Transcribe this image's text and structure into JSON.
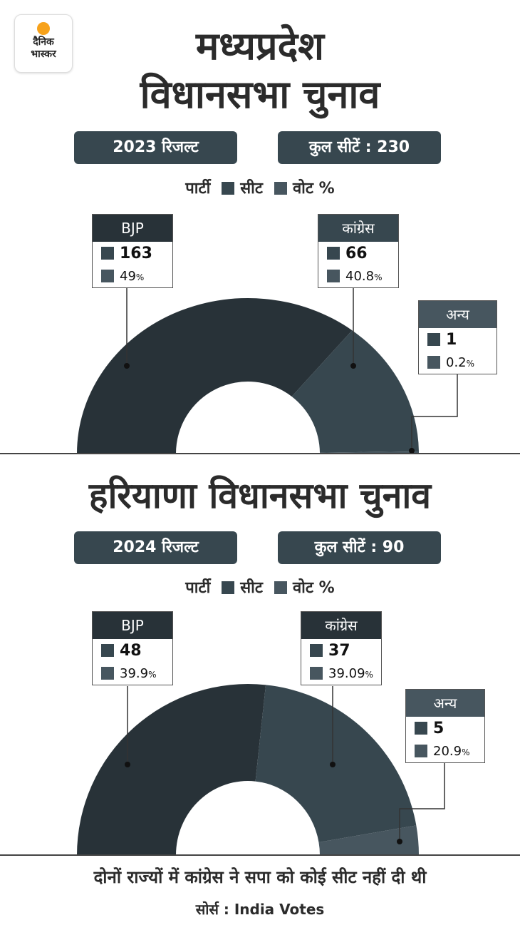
{
  "logo": {
    "line1": "दैनिक",
    "line2": "भास्कर"
  },
  "legend": {
    "party": "पार्टी",
    "seat": "सीट",
    "vote": "वोट %"
  },
  "colors": {
    "bjp": "#283238",
    "congress": "#37474f",
    "others": "#47565f",
    "vote_swatch": "#47565f",
    "seat_swatch": "#37474f"
  },
  "chart_data": [
    {
      "type": "pie",
      "title_line1": "मध्यप्रदेश",
      "title_line2": "विधानसभा चुनाव",
      "result_label": "2023 रिजल्ट",
      "total_seats_label": "कुल सीटें : 230",
      "total_seats": 230,
      "parties": [
        {
          "name": "BJP",
          "seats": 163,
          "vote": "49",
          "pct": "%"
        },
        {
          "name": "कांग्रेस",
          "seats": 66,
          "vote": "40.8",
          "pct": "%"
        },
        {
          "name": "अन्य",
          "seats": 1,
          "vote": "0.2",
          "pct": "%"
        }
      ]
    },
    {
      "type": "pie",
      "title_line1": "हरियाणा विधानसभा चुनाव",
      "result_label": "2024 रिजल्ट",
      "total_seats_label": "कुल सीटें : 90",
      "total_seats": 90,
      "parties": [
        {
          "name": "BJP",
          "seats": 48,
          "vote": "39.9",
          "pct": "%"
        },
        {
          "name": "कांग्रेस",
          "seats": 37,
          "vote": "39.09",
          "pct": "%"
        },
        {
          "name": "अन्य",
          "seats": 5,
          "vote": "20.9",
          "pct": "%"
        }
      ]
    }
  ],
  "footer": {
    "note": "दोनों राज्यों में कांग्रेस ने सपा को कोई सीट नहीं दी थी",
    "source": "सोर्स : India Votes"
  }
}
